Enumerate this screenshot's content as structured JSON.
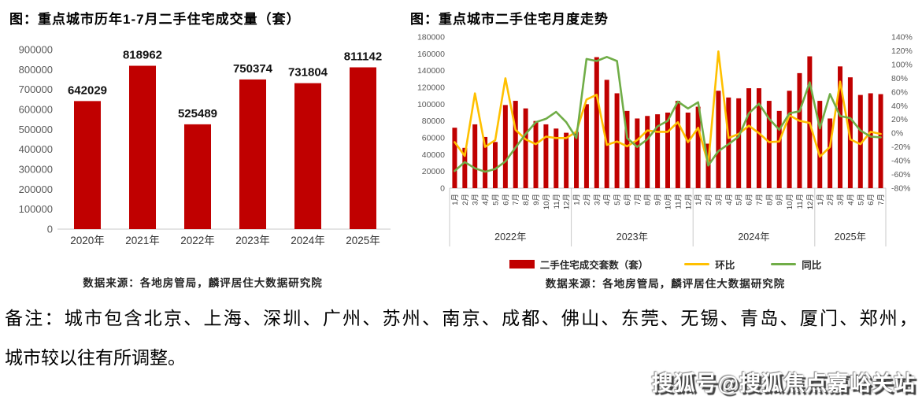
{
  "chart_data": [
    {
      "type": "bar",
      "title": "图：重点城市历年1-7月二手住宅成交量（套）",
      "categories": [
        "2020年",
        "2021年",
        "2022年",
        "2023年",
        "2024年",
        "2025年"
      ],
      "values": [
        642029,
        818962,
        525489,
        750374,
        731804,
        811142
      ],
      "value_labels": [
        "642029",
        "818962",
        "525489",
        "750374",
        "731804",
        "811142"
      ],
      "ylabel": "",
      "xlabel": "",
      "ylim": [
        0,
        900000
      ],
      "ytick_step": 100000,
      "ytick_labels": [
        "0",
        "100000",
        "200000",
        "300000",
        "400000",
        "500000",
        "600000",
        "700000",
        "800000",
        "900000"
      ],
      "grid": false,
      "bar_color": "#c00000",
      "source": "数据来源：各地房管局，麟评居住大数据研究院"
    },
    {
      "type": "bar+line",
      "title": "图：重点城市二手住宅月度走势",
      "x_labels": [
        "1月",
        "2月",
        "3月",
        "4月",
        "5月",
        "6月",
        "7月",
        "8月",
        "9月",
        "10月",
        "11月",
        "12月",
        "1月",
        "2月",
        "3月",
        "4月",
        "5月",
        "6月",
        "7月",
        "8月",
        "9月",
        "10月",
        "11月",
        "12月",
        "1月",
        "2月",
        "3月",
        "4月",
        "5月",
        "6月",
        "7月",
        "8月",
        "9月",
        "10月",
        "11月",
        "12月",
        "1月",
        "2月",
        "3月",
        "4月",
        "5月",
        "6月",
        "7月"
      ],
      "year_groups": [
        {
          "label": "2022年",
          "months": 12
        },
        {
          "label": "2023年",
          "months": 12
        },
        {
          "label": "2024年",
          "months": 12
        },
        {
          "label": "2025年",
          "months": 7
        }
      ],
      "series": [
        {
          "name": "二手住宅成交套数（套）",
          "type": "bar",
          "axis": "left",
          "color": "#c00000",
          "values": [
            72000,
            48000,
            76000,
            61000,
            55000,
            99000,
            104000,
            95000,
            80000,
            76000,
            71000,
            66000,
            67000,
            100000,
            156000,
            129000,
            113000,
            92000,
            83000,
            86000,
            88000,
            90000,
            104000,
            90000,
            97000,
            53000,
            116000,
            108000,
            107000,
            119000,
            119000,
            104000,
            92000,
            116000,
            137000,
            157000,
            104000,
            83000,
            145000,
            132000,
            111000,
            113000,
            112000
          ]
        },
        {
          "name": "环比",
          "type": "line",
          "axis": "right",
          "color": "#ffc000",
          "values": [
            -13,
            -33,
            58,
            -20,
            -10,
            80,
            5,
            -9,
            -16,
            -5,
            -7,
            -7,
            2,
            49,
            56,
            -17,
            -12,
            -19,
            -10,
            4,
            2,
            2,
            16,
            -13,
            8,
            -45,
            119,
            -7,
            -1,
            11,
            0,
            -13,
            -12,
            26,
            18,
            15,
            -34,
            -20,
            75,
            -9,
            -16,
            2,
            -1
          ]
        },
        {
          "name": "同比",
          "type": "line",
          "axis": "right",
          "color": "#70ad47",
          "values": [
            -55,
            -42,
            -51,
            -56,
            -52,
            -41,
            -21,
            -1,
            16,
            21,
            31,
            16,
            -7,
            108,
            105,
            111,
            105,
            -7,
            -20,
            -9,
            10,
            18,
            46,
            36,
            45,
            -47,
            -26,
            -16,
            -5,
            29,
            43,
            21,
            5,
            29,
            32,
            74,
            7,
            57,
            25,
            22,
            4,
            -5,
            -6
          ]
        }
      ],
      "left_axis": {
        "min": 0,
        "max": 180000,
        "step": 20000,
        "tick_labels": [
          "0",
          "20000",
          "40000",
          "60000",
          "80000",
          "100000",
          "120000",
          "140000",
          "160000",
          "180000"
        ]
      },
      "right_axis": {
        "min": -80,
        "max": 140,
        "step": 20,
        "suffix": "%",
        "tick_labels": [
          "-80%",
          "-60%",
          "-40%",
          "-20%",
          "0%",
          "20%",
          "40%",
          "60%",
          "80%",
          "100%",
          "120%",
          "140%"
        ]
      },
      "grid": false,
      "legend_position": "bottom",
      "source": "数据来源：各地房管局，麟评居住大数据研究院"
    }
  ],
  "note": {
    "line1": "备注：城市包含北京、上海、深圳、广州、苏州、南京、成都、佛山、东莞、无锡、青岛、厦门、郑州，",
    "line2": "城市较以往有所调整。"
  },
  "watermark": {
    "text": "搜狐号@搜狐焦点嘉峪关站"
  }
}
